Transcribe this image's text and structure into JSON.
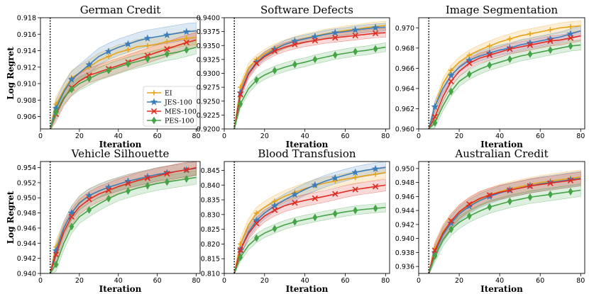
{
  "figure": {
    "xlabel": "Iteration",
    "ylabel": "Log Regret"
  },
  "chart_data": [
    {
      "type": "line",
      "title": "German Credit",
      "xlabel": "Iteration",
      "ylabel": "Log Regret",
      "xlim": [
        0,
        82
      ],
      "ylim": [
        0.9045,
        0.918
      ],
      "xticks": [
        0,
        20,
        40,
        60,
        80
      ],
      "yticks": [
        0.906,
        0.908,
        0.91,
        0.912,
        0.914,
        0.916,
        0.918
      ],
      "ytick_labels": [
        "0.906",
        "0.908",
        "0.910",
        "0.912",
        "0.914",
        "0.916",
        "0.918"
      ],
      "vline": 5,
      "legend": "lower-right",
      "x": [
        5,
        8,
        12,
        16,
        20,
        25,
        30,
        35,
        40,
        45,
        50,
        55,
        60,
        65,
        70,
        75,
        80
      ],
      "series": [
        {
          "name": "EI",
          "values": [
            0.9045,
            0.9075,
            0.9092,
            0.9107,
            0.9113,
            0.912,
            0.9128,
            0.9133,
            0.9138,
            0.9141,
            0.9145,
            0.9146,
            0.9148,
            0.9151,
            0.9153,
            0.9155,
            0.9156
          ],
          "band": 0.0009
        },
        {
          "name": "JES-100",
          "values": [
            0.9045,
            0.907,
            0.909,
            0.9105,
            0.9113,
            0.9123,
            0.9133,
            0.9139,
            0.9144,
            0.9148,
            0.9152,
            0.9155,
            0.9157,
            0.9159,
            0.9161,
            0.9163,
            0.9164
          ],
          "band": 0.001
        },
        {
          "name": "MES-100",
          "values": [
            0.9045,
            0.9063,
            0.9082,
            0.9095,
            0.9103,
            0.911,
            0.9114,
            0.9118,
            0.9122,
            0.9126,
            0.913,
            0.9134,
            0.9138,
            0.9142,
            0.9146,
            0.915,
            0.9153
          ],
          "band": 0.0009
        },
        {
          "name": "PES-100",
          "values": [
            0.9045,
            0.9065,
            0.9083,
            0.9093,
            0.91,
            0.9106,
            0.9112,
            0.9116,
            0.912,
            0.9124,
            0.9127,
            0.913,
            0.9133,
            0.9136,
            0.9138,
            0.9141,
            0.9144
          ],
          "band": 0.0008
        }
      ]
    },
    {
      "type": "line",
      "title": "Software Defects",
      "xlabel": "Iteration",
      "ylabel": "",
      "xlim": [
        0,
        82
      ],
      "ylim": [
        0.92,
        0.94
      ],
      "xticks": [
        0,
        20,
        40,
        60,
        80
      ],
      "yticks": [
        0.92,
        0.9225,
        0.925,
        0.9275,
        0.93,
        0.9325,
        0.935,
        0.9375,
        0.94
      ],
      "ytick_labels": [
        "0.9200",
        "0.9225",
        "0.9250",
        "0.9275",
        "0.9300",
        "0.9325",
        "0.9350",
        "0.9375",
        "0.9400"
      ],
      "vline": 5,
      "x": [
        5,
        8,
        12,
        16,
        20,
        25,
        30,
        35,
        40,
        45,
        50,
        55,
        60,
        65,
        70,
        75,
        80
      ],
      "series": [
        {
          "name": "EI",
          "values": [
            0.92,
            0.9275,
            0.931,
            0.9325,
            0.9335,
            0.9345,
            0.9352,
            0.9358,
            0.9363,
            0.9367,
            0.9371,
            0.9374,
            0.9377,
            0.9379,
            0.9382,
            0.9384,
            0.9386
          ],
          "band": 0.0008
        },
        {
          "name": "JES-100",
          "values": [
            0.92,
            0.9265,
            0.93,
            0.932,
            0.9332,
            0.9343,
            0.9352,
            0.9358,
            0.9362,
            0.9366,
            0.937,
            0.9373,
            0.9375,
            0.9378,
            0.938,
            0.9382,
            0.9383
          ],
          "band": 0.0007
        },
        {
          "name": "MES-100",
          "values": [
            0.92,
            0.9262,
            0.9298,
            0.9318,
            0.933,
            0.934,
            0.9347,
            0.9352,
            0.9356,
            0.9359,
            0.9362,
            0.9364,
            0.9366,
            0.9368,
            0.937,
            0.9372,
            0.9373
          ],
          "band": 0.0008
        },
        {
          "name": "PES-100",
          "values": [
            0.92,
            0.9245,
            0.9272,
            0.9288,
            0.9297,
            0.9305,
            0.9311,
            0.9316,
            0.932,
            0.9325,
            0.9329,
            0.9333,
            0.9336,
            0.9339,
            0.9341,
            0.9344,
            0.9347
          ],
          "band": 0.0008
        }
      ]
    },
    {
      "type": "line",
      "title": "Image Segmentation",
      "xlabel": "Iteration",
      "ylabel": "",
      "xlim": [
        0,
        82
      ],
      "ylim": [
        0.96,
        0.971
      ],
      "xticks": [
        0,
        20,
        40,
        60,
        80
      ],
      "yticks": [
        0.96,
        0.962,
        0.964,
        0.966,
        0.968,
        0.97
      ],
      "ytick_labels": [
        "0.960",
        "0.962",
        "0.964",
        "0.966",
        "0.968",
        "0.970"
      ],
      "vline": 5,
      "x": [
        5,
        8,
        12,
        16,
        20,
        25,
        30,
        35,
        40,
        45,
        50,
        55,
        60,
        65,
        70,
        75,
        80
      ],
      "series": [
        {
          "name": "EI",
          "values": [
            0.96,
            0.9622,
            0.9645,
            0.9658,
            0.9666,
            0.9673,
            0.9678,
            0.9682,
            0.9686,
            0.9689,
            0.9692,
            0.9694,
            0.9696,
            0.9698,
            0.97,
            0.9701,
            0.9702
          ],
          "band": 0.0005
        },
        {
          "name": "JES-100",
          "values": [
            0.96,
            0.9622,
            0.964,
            0.9653,
            0.9661,
            0.9668,
            0.9672,
            0.9675,
            0.9678,
            0.968,
            0.9683,
            0.9685,
            0.9687,
            0.9689,
            0.9691,
            0.9694,
            0.9697
          ],
          "band": 0.0005
        },
        {
          "name": "MES-100",
          "values": [
            0.96,
            0.9612,
            0.9632,
            0.9647,
            0.9657,
            0.9665,
            0.967,
            0.9673,
            0.9676,
            0.9679,
            0.9681,
            0.9683,
            0.9685,
            0.9687,
            0.9688,
            0.969,
            0.9692
          ],
          "band": 0.0005
        },
        {
          "name": "PES-100",
          "values": [
            0.96,
            0.9606,
            0.9623,
            0.9637,
            0.9647,
            0.9654,
            0.9659,
            0.9663,
            0.9666,
            0.9669,
            0.9672,
            0.9674,
            0.9676,
            0.9678,
            0.968,
            0.9682,
            0.9683
          ],
          "band": 0.0005
        }
      ]
    },
    {
      "type": "line",
      "title": "Vehicle Silhouette",
      "xlabel": "Iteration",
      "ylabel": "Log Regret",
      "xlim": [
        0,
        82
      ],
      "ylim": [
        0.94,
        0.9548
      ],
      "xticks": [
        0,
        20,
        40,
        60,
        80
      ],
      "yticks": [
        0.94,
        0.942,
        0.944,
        0.946,
        0.948,
        0.95,
        0.952,
        0.954
      ],
      "ytick_labels": [
        "0.940",
        "0.942",
        "0.944",
        "0.946",
        "0.948",
        "0.950",
        "0.952",
        "0.954"
      ],
      "vline": 5,
      "x": [
        5,
        8,
        12,
        16,
        20,
        25,
        30,
        35,
        40,
        45,
        50,
        55,
        60,
        65,
        70,
        75,
        80
      ],
      "series": [
        {
          "name": "EI",
          "values": [
            0.94,
            0.9435,
            0.946,
            0.948,
            0.9494,
            0.9503,
            0.9509,
            0.9514,
            0.9518,
            0.9522,
            0.9525,
            0.9528,
            0.9531,
            0.9533,
            0.9535,
            0.9537,
            0.9539
          ],
          "band": 0.0009
        },
        {
          "name": "JES-100",
          "values": [
            0.94,
            0.943,
            0.946,
            0.948,
            0.9493,
            0.9503,
            0.9509,
            0.9514,
            0.9518,
            0.9522,
            0.9525,
            0.9528,
            0.9531,
            0.9533,
            0.9535,
            0.9537,
            0.9539
          ],
          "band": 0.0009
        },
        {
          "name": "MES-100",
          "values": [
            0.94,
            0.9425,
            0.9455,
            0.9475,
            0.9488,
            0.9498,
            0.9505,
            0.951,
            0.9515,
            0.9519,
            0.9523,
            0.9526,
            0.9529,
            0.9532,
            0.9535,
            0.9537,
            0.954
          ],
          "band": 0.001
        },
        {
          "name": "PES-100",
          "values": [
            0.94,
            0.9412,
            0.944,
            0.9462,
            0.9475,
            0.9484,
            0.9492,
            0.9499,
            0.9505,
            0.9509,
            0.9513,
            0.9516,
            0.9519,
            0.9521,
            0.9523,
            0.9525,
            0.9527
          ],
          "band": 0.0009
        }
      ]
    },
    {
      "type": "line",
      "title": "Blood Transfusion",
      "xlabel": "Iteration",
      "ylabel": "",
      "xlim": [
        0,
        82
      ],
      "ylim": [
        0.81,
        0.848
      ],
      "xticks": [
        0,
        20,
        40,
        60,
        80
      ],
      "yticks": [
        0.81,
        0.815,
        0.82,
        0.825,
        0.83,
        0.835,
        0.84,
        0.845
      ],
      "ytick_labels": [
        "0.810",
        "0.815",
        "0.820",
        "0.825",
        "0.830",
        "0.835",
        "0.840",
        "0.845"
      ],
      "vline": 5,
      "x": [
        5,
        8,
        12,
        16,
        20,
        25,
        30,
        35,
        40,
        45,
        50,
        55,
        60,
        65,
        70,
        75,
        80
      ],
      "series": [
        {
          "name": "EI",
          "values": [
            0.81,
            0.82,
            0.8265,
            0.8305,
            0.8325,
            0.8345,
            0.8362,
            0.8375,
            0.8388,
            0.8398,
            0.8407,
            0.8414,
            0.842,
            0.8426,
            0.8432,
            0.8437,
            0.8443
          ],
          "band": 0.002
        },
        {
          "name": "JES-100",
          "values": [
            0.81,
            0.818,
            0.824,
            0.828,
            0.8305,
            0.833,
            0.835,
            0.8368,
            0.8385,
            0.84,
            0.8413,
            0.8424,
            0.8434,
            0.8443,
            0.845,
            0.8455,
            0.846
          ],
          "band": 0.002
        },
        {
          "name": "MES-100",
          "values": [
            0.81,
            0.818,
            0.8235,
            0.827,
            0.8295,
            0.8315,
            0.833,
            0.834,
            0.8348,
            0.8355,
            0.8362,
            0.837,
            0.8378,
            0.8385,
            0.839,
            0.8395,
            0.84
          ],
          "band": 0.002
        },
        {
          "name": "PES-100",
          "values": [
            0.81,
            0.8155,
            0.8195,
            0.822,
            0.8237,
            0.8252,
            0.8265,
            0.8275,
            0.8283,
            0.829,
            0.8297,
            0.8303,
            0.8309,
            0.8314,
            0.8318,
            0.8321,
            0.8324
          ],
          "band": 0.0015
        }
      ]
    },
    {
      "type": "line",
      "title": "Australian Credit",
      "xlabel": "Iteration",
      "ylabel": "",
      "xlim": [
        0,
        82
      ],
      "ylim": [
        0.935,
        0.951
      ],
      "xticks": [
        0,
        20,
        40,
        60,
        80
      ],
      "yticks": [
        0.936,
        0.938,
        0.94,
        0.942,
        0.944,
        0.946,
        0.948,
        0.95
      ],
      "ytick_labels": [
        "0.936",
        "0.938",
        "0.940",
        "0.942",
        "0.944",
        "0.946",
        "0.948",
        "0.950"
      ],
      "vline": 5,
      "x": [
        5,
        8,
        12,
        16,
        20,
        25,
        30,
        35,
        40,
        45,
        50,
        55,
        60,
        65,
        70,
        75,
        80
      ],
      "series": [
        {
          "name": "EI",
          "values": [
            0.935,
            0.9385,
            0.941,
            0.9425,
            0.9437,
            0.9448,
            0.9456,
            0.9462,
            0.9467,
            0.9471,
            0.9474,
            0.9477,
            0.948,
            0.9482,
            0.9484,
            0.9486,
            0.9488
          ],
          "band": 0.001
        },
        {
          "name": "JES-100",
          "values": [
            0.935,
            0.938,
            0.9405,
            0.9422,
            0.9435,
            0.9446,
            0.9454,
            0.946,
            0.9465,
            0.9469,
            0.9472,
            0.9475,
            0.9478,
            0.948,
            0.9482,
            0.9484,
            0.9486
          ],
          "band": 0.001
        },
        {
          "name": "MES-100",
          "values": [
            0.935,
            0.9383,
            0.9408,
            0.9425,
            0.9438,
            0.9449,
            0.9457,
            0.9462,
            0.9466,
            0.9469,
            0.9472,
            0.9475,
            0.9477,
            0.9479,
            0.9481,
            0.9483,
            0.9485
          ],
          "band": 0.001
        },
        {
          "name": "PES-100",
          "values": [
            0.935,
            0.9375,
            0.9398,
            0.9413,
            0.9423,
            0.9432,
            0.9439,
            0.9445,
            0.9449,
            0.9453,
            0.9456,
            0.9459,
            0.9461,
            0.9463,
            0.9465,
            0.9467,
            0.9469
          ],
          "band": 0.0009
        }
      ]
    }
  ],
  "style": {
    "series_colors": {
      "EI": "#e8a317",
      "JES-100": "#3c7ebc",
      "MES-100": "#e02b20",
      "PES-100": "#45a447"
    },
    "series_markers": {
      "EI": "plus",
      "JES-100": "star",
      "MES-100": "cross",
      "PES-100": "diamond"
    },
    "vline_color": "#000000"
  }
}
